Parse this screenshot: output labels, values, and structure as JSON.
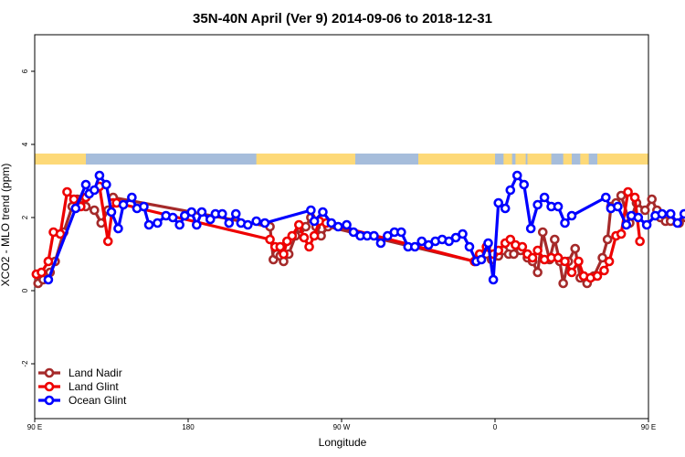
{
  "chart_data": {
    "type": "line",
    "title": "35N-40N April (Ver 9)   2014-09-06 to 2018-12-31",
    "xlabel": "Longitude",
    "ylabel": "XCO2 - MLO trend (ppm)",
    "xlim": [
      90,
      450
    ],
    "ylim": [
      -3.5,
      7.0
    ],
    "x_ticks": [
      {
        "value": 90,
        "label": "90 E"
      },
      {
        "value": 180,
        "label": "180"
      },
      {
        "value": 270,
        "label": "90 W"
      },
      {
        "value": 360,
        "label": "0"
      },
      {
        "value": 450,
        "label": "90 E"
      },
      {
        "value": 540,
        "label": "180"
      }
    ],
    "y_ticks": [
      {
        "value": -2,
        "label": "-2"
      },
      {
        "value": 0,
        "label": "0"
      },
      {
        "value": 2,
        "label": "2"
      },
      {
        "value": 4,
        "label": "4"
      },
      {
        "value": 6,
        "label": "6"
      }
    ],
    "grid": false,
    "legend_position": "bottom-left",
    "land_ocean_strip": {
      "y_range": [
        3.45,
        3.75
      ],
      "ocean_color": "#a6bddb",
      "land_color": "#fdd978",
      "land_intervals_lon": [
        [
          90,
          120
        ],
        [
          220,
          278
        ],
        [
          315,
          360
        ],
        [
          365,
          370
        ],
        [
          372,
          378
        ],
        [
          379,
          393
        ],
        [
          400,
          405
        ],
        [
          410,
          415
        ],
        [
          420,
          470
        ],
        [
          480,
          484
        ]
      ]
    },
    "series": [
      {
        "name": "Land Nadir",
        "color": "#a52a2a",
        "x": [
          92,
          95,
          99,
          102,
          107,
          112,
          115,
          120,
          125,
          129,
          133,
          136,
          228,
          230,
          232,
          234,
          236,
          239,
          243,
          246,
          249,
          252,
          255,
          258,
          262,
          348,
          351,
          355,
          358,
          362,
          365,
          368,
          371,
          375,
          379,
          382,
          385,
          388,
          392,
          395,
          398,
          400,
          403,
          407,
          410,
          414,
          418,
          423,
          426,
          428,
          431,
          434,
          439,
          443,
          448,
          452,
          455,
          457,
          460,
          463,
          468,
          472,
          477,
          480,
          483,
          486
        ],
        "y": [
          0.2,
          0.3,
          0.5,
          0.8,
          1.6,
          2.3,
          2.5,
          2.3,
          2.2,
          1.85,
          2.2,
          2.55,
          1.75,
          0.85,
          1.0,
          0.95,
          0.8,
          1.0,
          1.5,
          1.7,
          1.75,
          2.0,
          1.75,
          1.5,
          1.75,
          0.8,
          0.9,
          1.0,
          0.85,
          0.95,
          1.1,
          1.0,
          1.0,
          1.1,
          0.9,
          0.8,
          0.5,
          1.6,
          0.85,
          1.4,
          0.8,
          0.2,
          0.8,
          1.15,
          0.35,
          0.2,
          0.4,
          0.9,
          1.4,
          2.3,
          2.4,
          2.6,
          1.85,
          2.4,
          2.2,
          2.5,
          2.2,
          2.0,
          1.9,
          1.9,
          1.85,
          2.0,
          1.5,
          1.8,
          1.9,
          2.0
        ]
      },
      {
        "name": "Land Glint",
        "color": "#ee0000",
        "x": [
          91,
          94,
          98,
          101,
          105,
          109,
          113,
          117,
          120,
          128,
          133,
          136,
          138,
          228,
          231,
          234,
          236,
          238,
          241,
          245,
          248,
          251,
          254,
          257,
          261,
          348,
          351,
          355,
          359,
          362,
          366,
          369,
          372,
          376,
          379,
          382,
          385,
          389,
          393,
          397,
          401,
          405,
          409,
          412,
          416,
          420,
          424,
          427,
          431,
          434,
          438,
          442,
          445
        ],
        "y": [
          0.45,
          0.5,
          0.8,
          1.6,
          1.55,
          2.7,
          2.5,
          2.3,
          2.55,
          2.85,
          1.35,
          2.4,
          2.4,
          1.4,
          1.2,
          1.2,
          1.0,
          1.35,
          1.5,
          1.8,
          1.45,
          1.2,
          1.5,
          1.9,
          1.85,
          0.8,
          1.0,
          1.2,
          1.0,
          1.1,
          1.3,
          1.4,
          1.25,
          1.2,
          1.0,
          0.9,
          1.1,
          0.85,
          0.9,
          0.9,
          0.8,
          0.5,
          0.8,
          0.4,
          0.35,
          0.4,
          0.55,
          0.8,
          1.5,
          1.55,
          2.7,
          2.55,
          1.35
        ]
      },
      {
        "name": "Ocean Glint",
        "color": "#0000ff",
        "x": [
          98,
          114,
          120,
          122,
          125,
          128,
          132,
          135,
          139,
          142,
          147,
          150,
          154,
          157,
          162,
          167,
          171,
          175,
          178,
          182,
          185,
          188,
          193,
          196,
          200,
          204,
          208,
          211,
          215,
          220,
          225,
          252,
          254,
          259,
          264,
          268,
          273,
          277,
          281,
          285,
          289,
          293,
          297,
          301,
          305,
          309,
          313,
          317,
          321,
          325,
          329,
          333,
          337,
          341,
          345,
          349,
          352,
          356,
          359,
          362,
          366,
          369,
          373,
          377,
          381,
          385,
          389,
          393,
          397,
          401,
          405,
          425,
          428,
          432,
          437,
          440,
          444,
          449,
          454,
          458,
          463,
          467,
          471,
          475,
          480
        ],
        "y": [
          0.3,
          2.25,
          2.9,
          2.65,
          2.75,
          3.15,
          2.9,
          2.15,
          1.7,
          2.35,
          2.55,
          2.25,
          2.3,
          1.8,
          1.85,
          2.05,
          2.0,
          1.8,
          2.05,
          2.15,
          1.8,
          2.15,
          1.95,
          2.1,
          2.1,
          1.85,
          2.1,
          1.85,
          1.8,
          1.9,
          1.85,
          2.2,
          1.9,
          2.15,
          1.85,
          1.75,
          1.8,
          1.6,
          1.5,
          1.5,
          1.5,
          1.3,
          1.5,
          1.6,
          1.6,
          1.2,
          1.2,
          1.35,
          1.25,
          1.35,
          1.4,
          1.35,
          1.45,
          1.55,
          1.2,
          0.8,
          0.85,
          1.3,
          0.3,
          2.4,
          2.25,
          2.75,
          3.15,
          2.9,
          1.7,
          2.35,
          2.55,
          2.3,
          2.3,
          1.85,
          2.05,
          2.55,
          2.25,
          2.3,
          1.8,
          2.05,
          2.0,
          1.8,
          2.05,
          2.1,
          2.1,
          1.85,
          2.1,
          1.85,
          1.8
        ]
      }
    ]
  }
}
